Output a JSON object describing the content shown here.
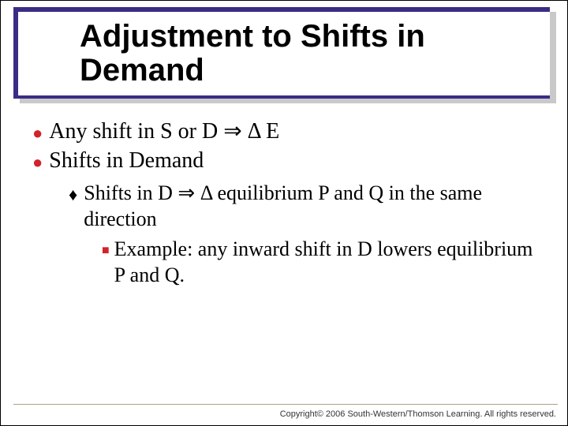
{
  "colors": {
    "title_border": "#3b2c85",
    "title_shadow": "#c9c9c9",
    "bullet_red": "#d2232a",
    "background": "#ffffff",
    "text": "#000000",
    "footer_line": "#b0a080"
  },
  "title": "Adjustment to Shifts in Demand",
  "bullets": {
    "b1a": "Any shift in S or D ⇒ Δ E",
    "b1b": "Shifts in Demand",
    "b2a": "Shifts in D ⇒ Δ equilibrium P and Q in the same direction",
    "b3a": "Example: any inward shift in D lowers equilibrium P and Q."
  },
  "footer": "Copyright© 2006 South-Western/Thomson Learning. All rights reserved."
}
